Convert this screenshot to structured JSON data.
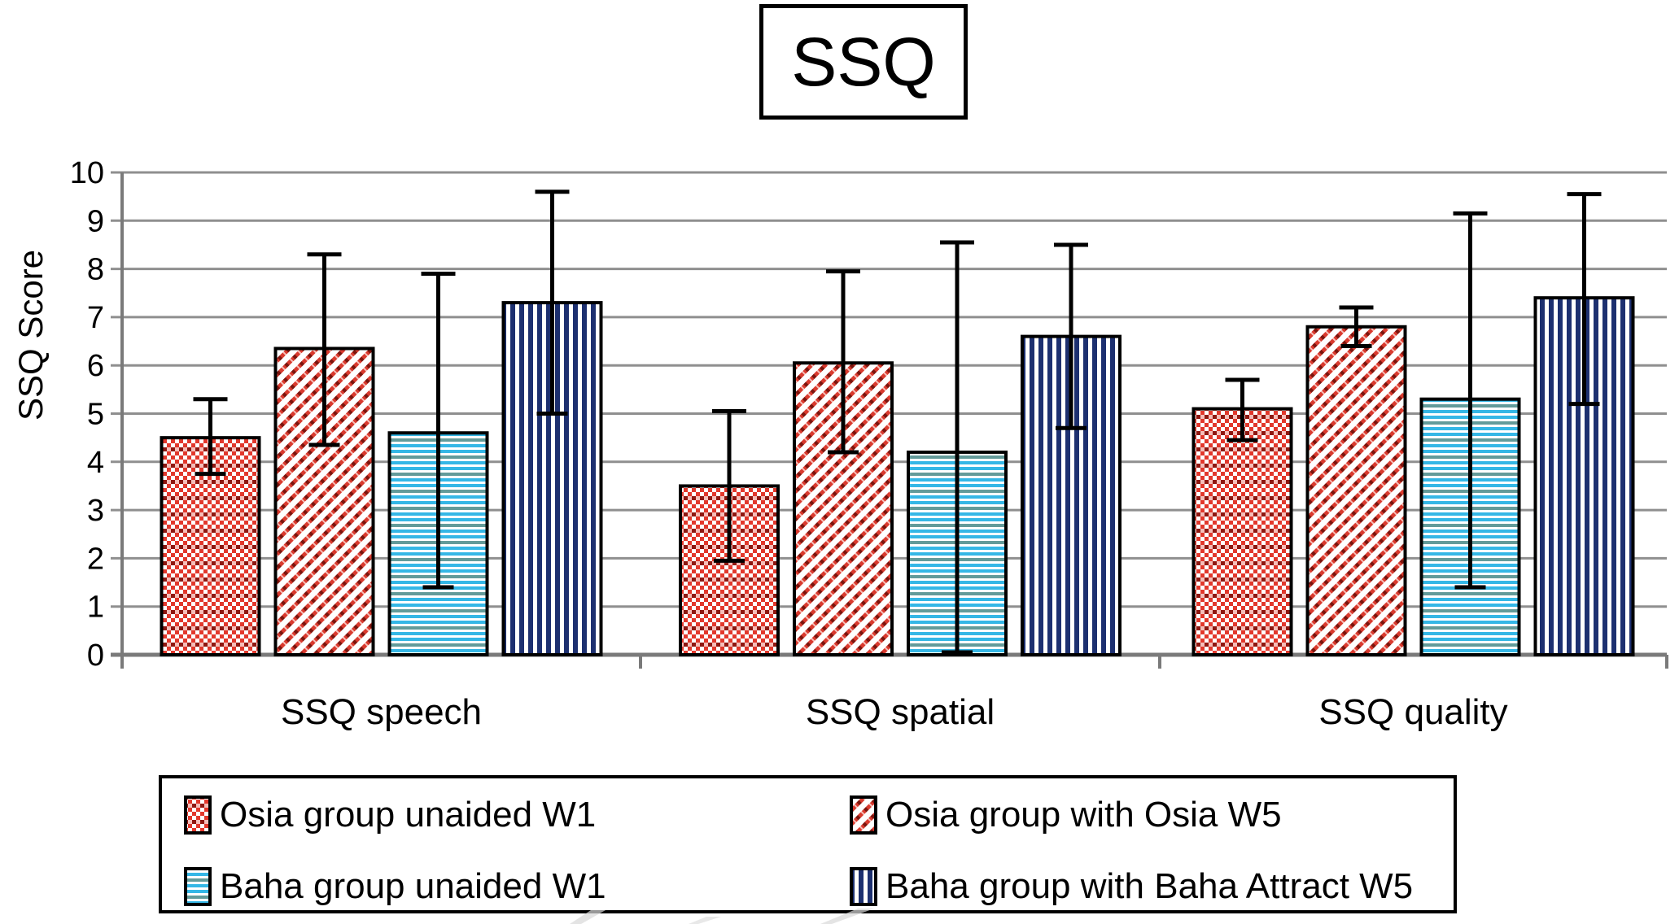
{
  "title": "SSQ",
  "chart_data": {
    "type": "bar",
    "title": "SSQ",
    "xlabel": "",
    "ylabel": "SSQ Score",
    "ylim": [
      0,
      10
    ],
    "ytick_step": 1,
    "yticks": [
      0,
      1,
      2,
      3,
      4,
      5,
      6,
      7,
      8,
      9,
      10
    ],
    "grid": true,
    "legend_position": "bottom",
    "categories": [
      "SSQ speech",
      "SSQ spatial",
      "SSQ quality"
    ],
    "series": [
      {
        "name": "Osia group unaided W1",
        "pattern": "red-checker",
        "values": [
          4.5,
          3.5,
          5.1
        ],
        "error_high": [
          5.3,
          5.05,
          5.7
        ],
        "error_low": [
          3.75,
          1.95,
          4.45
        ]
      },
      {
        "name": "Osia group with Osia W5",
        "pattern": "red-diagonal-stripes",
        "values": [
          6.35,
          6.05,
          6.8
        ],
        "error_high": [
          8.3,
          7.95,
          7.2
        ],
        "error_low": [
          4.35,
          4.2,
          6.4
        ]
      },
      {
        "name": "Baha group unaided W1",
        "pattern": "cyan-horizontal-stripes",
        "values": [
          4.6,
          4.2,
          5.3
        ],
        "error_high": [
          7.9,
          8.55,
          9.15
        ],
        "error_low": [
          1.4,
          0.05,
          1.4
        ]
      },
      {
        "name": "Baha group with Baha Attract W5",
        "pattern": "navy-vertical-stripes",
        "values": [
          7.3,
          6.6,
          7.4
        ],
        "error_high": [
          9.6,
          8.5,
          9.55
        ],
        "error_low": [
          5.0,
          4.7,
          5.2
        ]
      }
    ]
  },
  "colors": {
    "checker_red": "#e2382c",
    "checker_dark_red": "#8f1710",
    "diagonal_red": "#d93a2e",
    "diagonal_dark_red": "#7c150e",
    "stripe_cyan": "#35b7e6",
    "stripe_teal": "#639b9a",
    "stripe_navy": "#1d3070",
    "gridline_gray": "#8f8f8f",
    "axis_gray": "#7a7a7a",
    "error_bar_black": "#000000",
    "watermark_gray": "#d9d9d9"
  }
}
